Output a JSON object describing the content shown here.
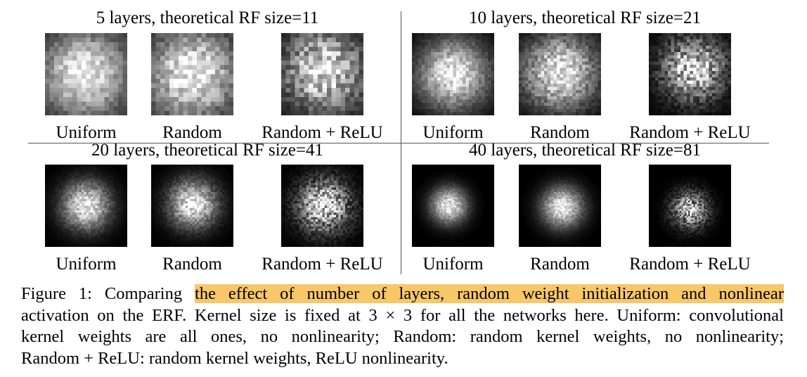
{
  "figure": {
    "panels": [
      {
        "title": "5 layers, theoretical RF size=11",
        "labels": [
          "Uniform",
          "Random",
          "Random + ReLU"
        ]
      },
      {
        "title": "10 layers, theoretical RF size=21",
        "labels": [
          "Uniform",
          "Random",
          "Random + ReLU"
        ]
      },
      {
        "title": "20 layers, theoretical RF size=41",
        "labels": [
          "Uniform",
          "Random",
          "Random + ReLU"
        ]
      },
      {
        "title": "40 layers, theoretical RF size=81",
        "labels": [
          "Uniform",
          "Random",
          "Random + ReLU"
        ]
      }
    ]
  },
  "caption": {
    "label": "Figure 1:",
    "lead": "Comparing",
    "highlight": "the effect of number of layers, random weight initialization and nonlinear",
    "line2": "activation on the ERF. Kernel size is fixed at 3 × 3 for all the networks here. Uniform: convolutional",
    "line3": "kernel weights are all ones, no nonlinearity; Random: random kernel weights, no nonlinearity;",
    "line4": "Random + ReLU: random kernel weights, ReLU nonlinearity.",
    "highlight_color": "#f7c768"
  }
}
